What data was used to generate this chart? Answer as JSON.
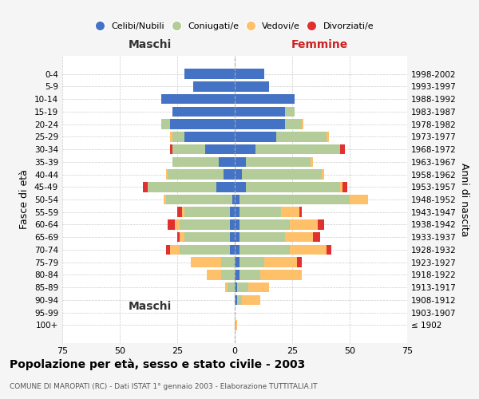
{
  "age_groups": [
    "100+",
    "95-99",
    "90-94",
    "85-89",
    "80-84",
    "75-79",
    "70-74",
    "65-69",
    "60-64",
    "55-59",
    "50-54",
    "45-49",
    "40-44",
    "35-39",
    "30-34",
    "25-29",
    "20-24",
    "15-19",
    "10-14",
    "5-9",
    "0-4"
  ],
  "birth_years": [
    "≤ 1902",
    "1903-1907",
    "1908-1912",
    "1913-1917",
    "1918-1922",
    "1923-1927",
    "1928-1932",
    "1933-1937",
    "1938-1942",
    "1943-1947",
    "1948-1952",
    "1953-1957",
    "1958-1962",
    "1963-1967",
    "1968-1972",
    "1973-1977",
    "1978-1982",
    "1983-1987",
    "1988-1992",
    "1993-1997",
    "1998-2002"
  ],
  "male": {
    "celibe": [
      0,
      0,
      0,
      0,
      0,
      0,
      2,
      2,
      2,
      2,
      1,
      8,
      5,
      7,
      13,
      22,
      28,
      27,
      32,
      18,
      22
    ],
    "coniugato": [
      0,
      0,
      0,
      3,
      6,
      6,
      22,
      20,
      22,
      20,
      29,
      30,
      24,
      20,
      14,
      5,
      4,
      0,
      0,
      0,
      0
    ],
    "vedovo": [
      0,
      0,
      0,
      1,
      6,
      13,
      4,
      2,
      2,
      1,
      1,
      0,
      1,
      0,
      0,
      1,
      0,
      0,
      0,
      0,
      0
    ],
    "divorziato": [
      0,
      0,
      0,
      0,
      0,
      0,
      2,
      1,
      3,
      2,
      0,
      2,
      0,
      0,
      1,
      0,
      0,
      0,
      0,
      0,
      0
    ]
  },
  "female": {
    "nubile": [
      0,
      0,
      1,
      1,
      2,
      2,
      2,
      2,
      2,
      2,
      2,
      5,
      3,
      5,
      9,
      18,
      22,
      22,
      26,
      15,
      13
    ],
    "coniugata": [
      0,
      0,
      2,
      5,
      9,
      11,
      22,
      20,
      22,
      18,
      48,
      41,
      35,
      28,
      37,
      22,
      7,
      4,
      0,
      0,
      0
    ],
    "vedova": [
      1,
      0,
      8,
      9,
      18,
      14,
      16,
      12,
      12,
      8,
      8,
      1,
      1,
      1,
      0,
      1,
      1,
      0,
      0,
      0,
      0
    ],
    "divorziata": [
      0,
      0,
      0,
      0,
      0,
      2,
      2,
      3,
      3,
      1,
      0,
      2,
      0,
      0,
      2,
      0,
      0,
      0,
      0,
      0,
      0
    ]
  },
  "colors": {
    "celibe_nubile": "#4472c4",
    "coniugato_coniugata": "#b3cc99",
    "vedovo_vedova": "#ffc06a",
    "divorziato_divorziata": "#e03030"
  },
  "title": "Popolazione per età, sesso e stato civile - 2003",
  "subtitle": "COMUNE DI MAROPATI (RC) - Dati ISTAT 1° gennaio 2003 - Elaborazione TUTTITALIA.IT",
  "xlabel_left": "Maschi",
  "xlabel_right": "Femmine",
  "ylabel_left": "Fasce di età",
  "ylabel_right": "Anni di nascita",
  "xlim": 75,
  "legend_labels": [
    "Celibi/Nubili",
    "Coniugati/e",
    "Vedovi/e",
    "Divorziati/e"
  ],
  "background_color": "#f5f5f5",
  "plot_bg_color": "#ffffff",
  "grid_color": "#cccccc"
}
